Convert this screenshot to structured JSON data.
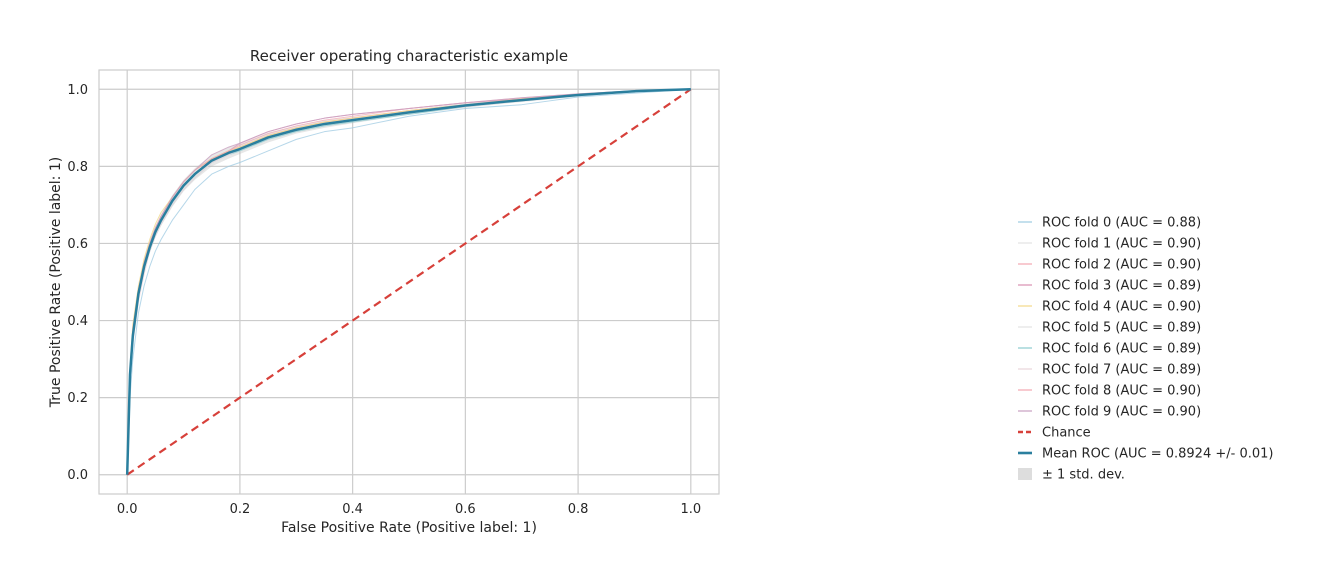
{
  "chart_data": {
    "type": "line",
    "title": "Receiver operating characteristic example",
    "xlabel": "False Positive Rate (Positive label: 1)",
    "ylabel": "True Positive Rate (Positive label: 1)",
    "xlim": [
      -0.05,
      1.05
    ],
    "ylim": [
      -0.05,
      1.05
    ],
    "xticks": [
      0.0,
      0.2,
      0.4,
      0.6,
      0.8,
      1.0
    ],
    "yticks": [
      0.0,
      0.2,
      0.4,
      0.6,
      0.8,
      1.0
    ],
    "xtick_labels": [
      "0.0",
      "0.2",
      "0.4",
      "0.6",
      "0.8",
      "1.0"
    ],
    "ytick_labels": [
      "0.0",
      "0.2",
      "0.4",
      "0.6",
      "0.8",
      "1.0"
    ],
    "grid": true,
    "legend_position": "right, outside plot",
    "background": "#ffffff",
    "grid_color": "#cccccc",
    "spine_color": "#cccccc",
    "series": [
      {
        "name": "ROC fold 0 (AUC = 0.88)",
        "color": "#9ecae1",
        "opacity": 0.75,
        "width": 1,
        "x": [
          0,
          0.005,
          0.01,
          0.02,
          0.03,
          0.04,
          0.05,
          0.06,
          0.08,
          0.1,
          0.12,
          0.15,
          0.18,
          0.2,
          0.25,
          0.3,
          0.35,
          0.4,
          0.5,
          0.6,
          0.7,
          0.8,
          0.9,
          1.0
        ],
        "y": [
          0,
          0.2,
          0.3,
          0.42,
          0.49,
          0.54,
          0.58,
          0.61,
          0.66,
          0.7,
          0.74,
          0.78,
          0.8,
          0.81,
          0.84,
          0.87,
          0.89,
          0.9,
          0.93,
          0.95,
          0.96,
          0.98,
          0.99,
          1.0
        ]
      },
      {
        "name": "ROC fold 1 (AUC = 0.90)",
        "color": "#e6e6e6",
        "opacity": 0.9,
        "width": 1,
        "x": [
          0,
          0.005,
          0.01,
          0.02,
          0.03,
          0.04,
          0.05,
          0.06,
          0.08,
          0.1,
          0.12,
          0.15,
          0.18,
          0.2,
          0.25,
          0.3,
          0.35,
          0.4,
          0.5,
          0.6,
          0.7,
          0.8,
          0.9,
          1.0
        ],
        "y": [
          0,
          0.25,
          0.36,
          0.47,
          0.54,
          0.59,
          0.63,
          0.66,
          0.71,
          0.75,
          0.78,
          0.81,
          0.83,
          0.84,
          0.87,
          0.89,
          0.91,
          0.92,
          0.94,
          0.96,
          0.97,
          0.985,
          0.995,
          1.0
        ]
      },
      {
        "name": "ROC fold 2 (AUC = 0.90)",
        "color": "#f4a6b2",
        "opacity": 0.7,
        "width": 1,
        "x": [
          0,
          0.005,
          0.01,
          0.02,
          0.03,
          0.04,
          0.05,
          0.06,
          0.08,
          0.1,
          0.12,
          0.15,
          0.18,
          0.2,
          0.25,
          0.3,
          0.35,
          0.4,
          0.5,
          0.6,
          0.7,
          0.8,
          0.9,
          1.0
        ],
        "y": [
          0,
          0.27,
          0.37,
          0.48,
          0.55,
          0.6,
          0.64,
          0.67,
          0.72,
          0.76,
          0.79,
          0.82,
          0.84,
          0.85,
          0.88,
          0.9,
          0.915,
          0.925,
          0.945,
          0.96,
          0.975,
          0.985,
          0.995,
          1.0
        ]
      },
      {
        "name": "ROC fold 3 (AUC = 0.89)",
        "color": "#d98fb0",
        "opacity": 0.7,
        "width": 1,
        "x": [
          0,
          0.005,
          0.01,
          0.02,
          0.03,
          0.04,
          0.05,
          0.06,
          0.08,
          0.1,
          0.12,
          0.15,
          0.18,
          0.2,
          0.25,
          0.3,
          0.35,
          0.4,
          0.5,
          0.6,
          0.7,
          0.8,
          0.9,
          1.0
        ],
        "y": [
          0,
          0.26,
          0.36,
          0.47,
          0.54,
          0.59,
          0.63,
          0.66,
          0.71,
          0.75,
          0.78,
          0.82,
          0.84,
          0.86,
          0.89,
          0.91,
          0.925,
          0.935,
          0.95,
          0.965,
          0.975,
          0.985,
          0.995,
          1.0
        ]
      },
      {
        "name": "ROC fold 4 (AUC = 0.90)",
        "color": "#f2d98a",
        "opacity": 0.8,
        "width": 1,
        "x": [
          0,
          0.005,
          0.01,
          0.02,
          0.03,
          0.04,
          0.05,
          0.06,
          0.08,
          0.1,
          0.12,
          0.15,
          0.18,
          0.2,
          0.25,
          0.3,
          0.35,
          0.4,
          0.5,
          0.6,
          0.7,
          0.8,
          0.9,
          1.0
        ],
        "y": [
          0,
          0.28,
          0.39,
          0.49,
          0.56,
          0.61,
          0.65,
          0.68,
          0.72,
          0.76,
          0.79,
          0.82,
          0.84,
          0.85,
          0.88,
          0.9,
          0.915,
          0.925,
          0.945,
          0.96,
          0.975,
          0.985,
          0.995,
          1.0
        ]
      },
      {
        "name": "ROC fold 5 (AUC = 0.89)",
        "color": "#e6e6e6",
        "opacity": 0.9,
        "width": 1,
        "x": [
          0,
          0.005,
          0.01,
          0.02,
          0.03,
          0.04,
          0.05,
          0.06,
          0.08,
          0.1,
          0.12,
          0.15,
          0.18,
          0.2,
          0.25,
          0.3,
          0.35,
          0.4,
          0.5,
          0.6,
          0.7,
          0.8,
          0.9,
          1.0
        ],
        "y": [
          0,
          0.24,
          0.35,
          0.46,
          0.53,
          0.58,
          0.62,
          0.65,
          0.7,
          0.74,
          0.77,
          0.81,
          0.83,
          0.84,
          0.87,
          0.895,
          0.91,
          0.92,
          0.94,
          0.955,
          0.97,
          0.985,
          0.995,
          1.0
        ]
      },
      {
        "name": "ROC fold 6 (AUC = 0.89)",
        "color": "#8ccbd0",
        "opacity": 0.75,
        "width": 1,
        "x": [
          0,
          0.005,
          0.01,
          0.02,
          0.03,
          0.04,
          0.05,
          0.06,
          0.08,
          0.1,
          0.12,
          0.15,
          0.18,
          0.2,
          0.25,
          0.3,
          0.35,
          0.4,
          0.5,
          0.6,
          0.7,
          0.8,
          0.9,
          1.0
        ],
        "y": [
          0,
          0.25,
          0.35,
          0.46,
          0.53,
          0.58,
          0.62,
          0.65,
          0.7,
          0.74,
          0.77,
          0.81,
          0.83,
          0.84,
          0.87,
          0.89,
          0.905,
          0.915,
          0.935,
          0.955,
          0.97,
          0.985,
          0.995,
          1.0
        ]
      },
      {
        "name": "ROC fold 7 (AUC = 0.89)",
        "color": "#ecd9df",
        "opacity": 0.9,
        "width": 1,
        "x": [
          0,
          0.005,
          0.01,
          0.02,
          0.03,
          0.04,
          0.05,
          0.06,
          0.08,
          0.1,
          0.12,
          0.15,
          0.18,
          0.2,
          0.25,
          0.3,
          0.35,
          0.4,
          0.5,
          0.6,
          0.7,
          0.8,
          0.9,
          1.0
        ],
        "y": [
          0,
          0.24,
          0.34,
          0.45,
          0.52,
          0.58,
          0.62,
          0.65,
          0.7,
          0.74,
          0.77,
          0.81,
          0.83,
          0.845,
          0.875,
          0.895,
          0.91,
          0.92,
          0.94,
          0.955,
          0.97,
          0.985,
          0.995,
          1.0
        ]
      },
      {
        "name": "ROC fold 8 (AUC = 0.90)",
        "color": "#f4a6b2",
        "opacity": 0.7,
        "width": 1,
        "x": [
          0,
          0.005,
          0.01,
          0.02,
          0.03,
          0.04,
          0.05,
          0.06,
          0.08,
          0.1,
          0.12,
          0.15,
          0.18,
          0.2,
          0.25,
          0.3,
          0.35,
          0.4,
          0.5,
          0.6,
          0.7,
          0.8,
          0.9,
          1.0
        ],
        "y": [
          0,
          0.27,
          0.38,
          0.48,
          0.55,
          0.6,
          0.64,
          0.67,
          0.72,
          0.76,
          0.79,
          0.82,
          0.84,
          0.855,
          0.885,
          0.905,
          0.92,
          0.93,
          0.95,
          0.965,
          0.978,
          0.988,
          0.996,
          1.0
        ]
      },
      {
        "name": "ROC fold 9 (AUC = 0.90)",
        "color": "#c9a0c0",
        "opacity": 0.8,
        "width": 1,
        "x": [
          0,
          0.005,
          0.01,
          0.02,
          0.03,
          0.04,
          0.05,
          0.06,
          0.08,
          0.1,
          0.12,
          0.15,
          0.18,
          0.2,
          0.25,
          0.3,
          0.35,
          0.4,
          0.5,
          0.6,
          0.7,
          0.8,
          0.9,
          1.0
        ],
        "y": [
          0,
          0.26,
          0.37,
          0.48,
          0.55,
          0.6,
          0.64,
          0.67,
          0.72,
          0.76,
          0.79,
          0.83,
          0.85,
          0.86,
          0.89,
          0.91,
          0.925,
          0.935,
          0.95,
          0.965,
          0.978,
          0.988,
          0.996,
          1.0
        ]
      },
      {
        "name": "Chance",
        "color": "#d7403a",
        "opacity": 1.0,
        "width": 2.2,
        "dash": "8,5",
        "x": [
          0,
          1
        ],
        "y": [
          0,
          1
        ]
      },
      {
        "name": "Mean ROC (AUC = 0.8924 +/- 0.01)",
        "color": "#2a7f9e",
        "opacity": 1.0,
        "width": 2.5,
        "x": [
          0,
          0.005,
          0.01,
          0.02,
          0.03,
          0.04,
          0.05,
          0.06,
          0.08,
          0.1,
          0.12,
          0.15,
          0.18,
          0.2,
          0.25,
          0.3,
          0.35,
          0.4,
          0.5,
          0.6,
          0.7,
          0.8,
          0.9,
          1.0
        ],
        "y": [
          0,
          0.26,
          0.36,
          0.47,
          0.54,
          0.59,
          0.63,
          0.66,
          0.71,
          0.75,
          0.78,
          0.815,
          0.835,
          0.845,
          0.875,
          0.895,
          0.91,
          0.92,
          0.94,
          0.958,
          0.972,
          0.985,
          0.995,
          1.0
        ]
      }
    ],
    "std_band": {
      "name": "± 1 std. dev.",
      "color": "#bbbbbb",
      "opacity": 0.35,
      "x": [
        0,
        0.005,
        0.01,
        0.02,
        0.03,
        0.04,
        0.05,
        0.06,
        0.08,
        0.1,
        0.12,
        0.15,
        0.18,
        0.2,
        0.25,
        0.3,
        0.35,
        0.4,
        0.5,
        0.6,
        0.7,
        0.8,
        0.9,
        1.0
      ],
      "lower": [
        0,
        0.24,
        0.34,
        0.45,
        0.52,
        0.575,
        0.615,
        0.645,
        0.695,
        0.735,
        0.765,
        0.8,
        0.82,
        0.832,
        0.862,
        0.885,
        0.9,
        0.912,
        0.934,
        0.952,
        0.967,
        0.981,
        0.993,
        1.0
      ],
      "upper": [
        0,
        0.28,
        0.38,
        0.49,
        0.56,
        0.605,
        0.645,
        0.675,
        0.725,
        0.765,
        0.795,
        0.83,
        0.85,
        0.858,
        0.888,
        0.905,
        0.92,
        0.928,
        0.946,
        0.964,
        0.977,
        0.989,
        0.997,
        1.0
      ]
    }
  }
}
